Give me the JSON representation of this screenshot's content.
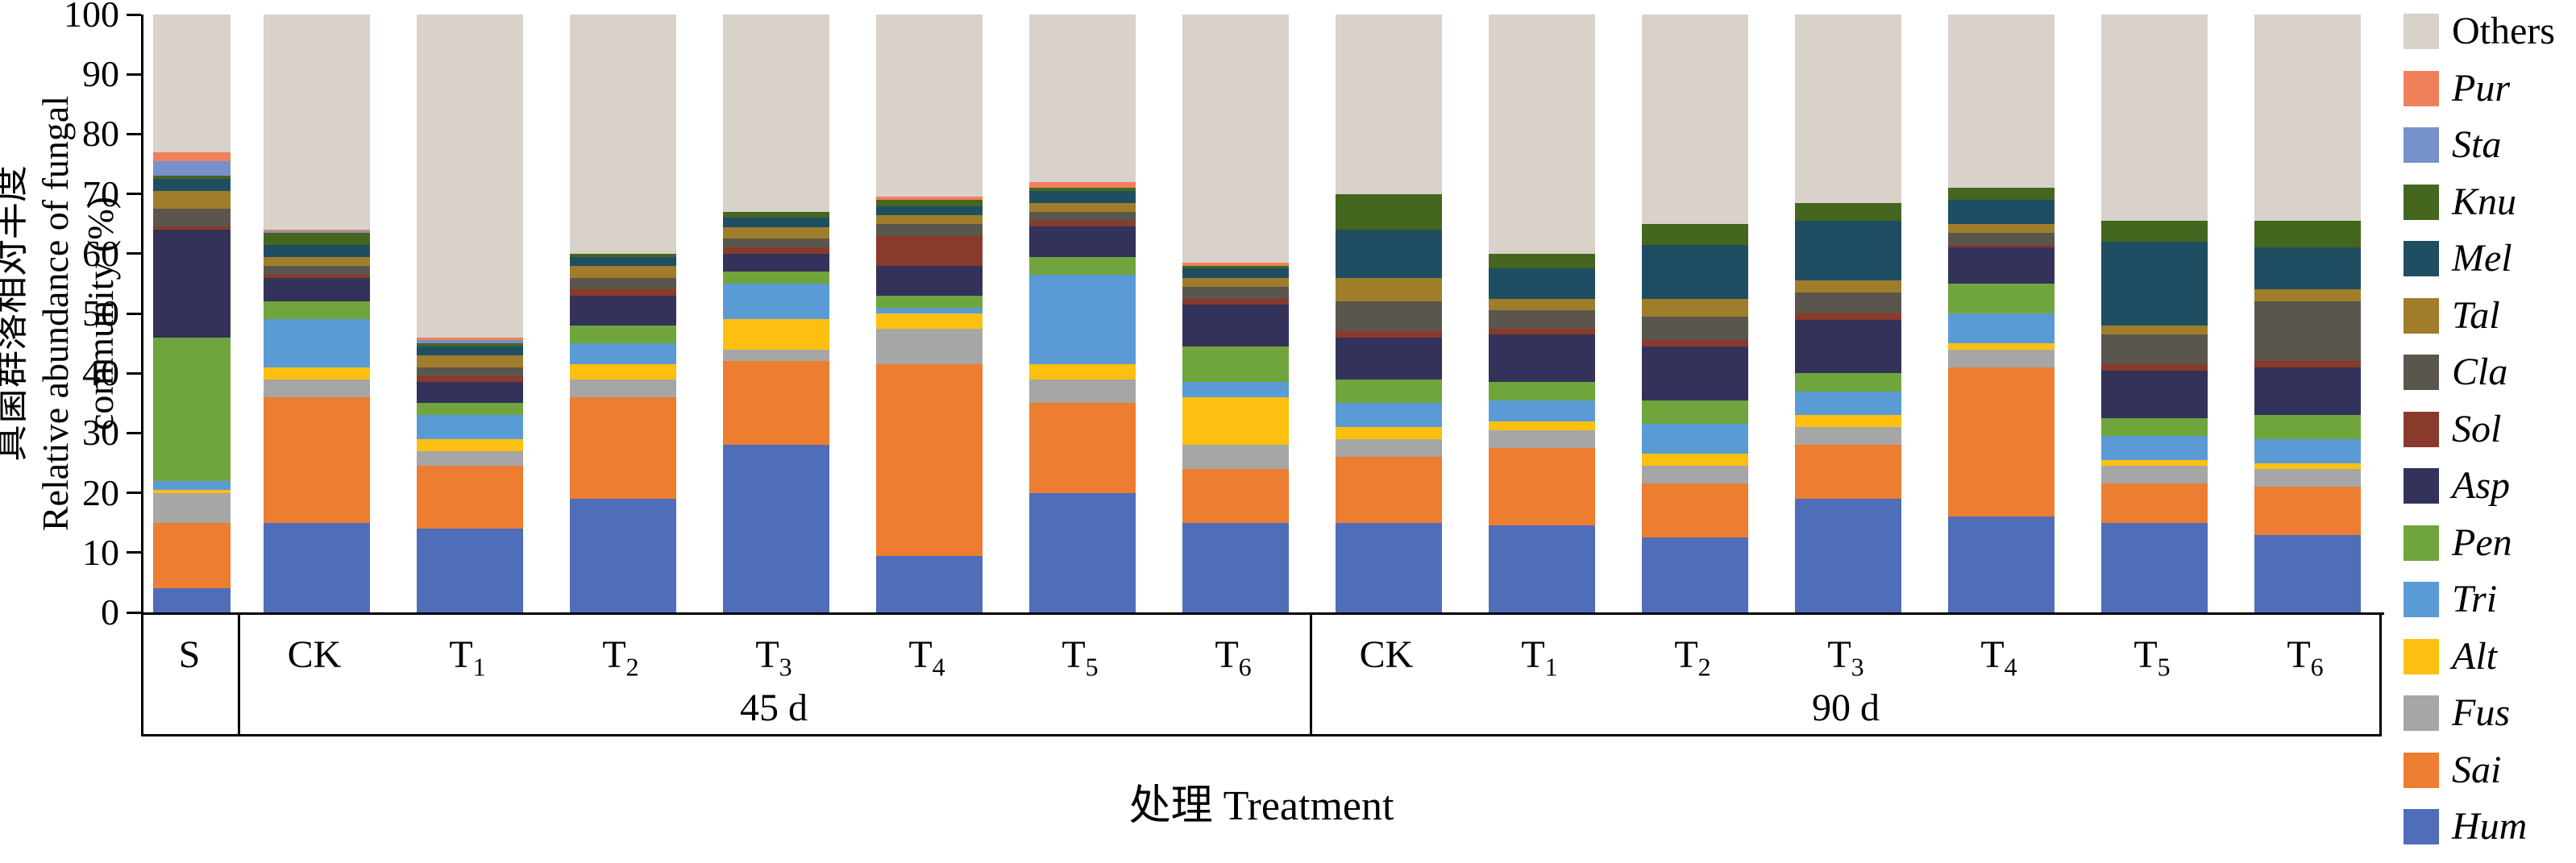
{
  "figure": {
    "ylabel_lines": [
      "真菌群落相对丰度",
      "Relative abundance of fungal",
      "community (%)"
    ],
    "xlabel": "处理 Treatment"
  },
  "chart_data": {
    "type": "bar",
    "stacked": true,
    "orientation": "vertical",
    "title": "",
    "xlabel": "处理 Treatment",
    "ylabel": "真菌群落相对丰度 Relative abundance of fungal community (%)",
    "ylim": [
      0,
      100
    ],
    "yticks": [
      0,
      10,
      20,
      30,
      40,
      50,
      60,
      70,
      80,
      90,
      100
    ],
    "grid": false,
    "legend_position": "right",
    "categories": [
      "S",
      "CK",
      "T1",
      "T2",
      "T3",
      "T4",
      "T5",
      "T6",
      "CK",
      "T1",
      "T2",
      "T3",
      "T4",
      "T5",
      "T6"
    ],
    "group_labels": [
      {
        "label": "45 d",
        "start": 1,
        "end": 7
      },
      {
        "label": "90 d",
        "start": 8,
        "end": 14
      }
    ],
    "legend_order_top_to_bottom": [
      "Others",
      "Pur",
      "Sta",
      "Knu",
      "Mel",
      "Tal",
      "Cla",
      "Sol",
      "Asp",
      "Pen",
      "Tri",
      "Alt",
      "Fus",
      "Sai",
      "Hum"
    ],
    "series": [
      {
        "name": "Hum",
        "color": "#4f6db9",
        "italic": true,
        "values": [
          4,
          15,
          14,
          19,
          28,
          9.5,
          20,
          15,
          15,
          14.5,
          12.5,
          19,
          16,
          15,
          13
        ]
      },
      {
        "name": "Sai",
        "color": "#ed7d31",
        "italic": true,
        "values": [
          11,
          21,
          10.5,
          17,
          14,
          32,
          15,
          9,
          11,
          13,
          9,
          9,
          25,
          6.5,
          8
        ]
      },
      {
        "name": "Fus",
        "color": "#a6a6a6",
        "italic": true,
        "values": [
          5,
          3,
          2.5,
          3,
          2,
          6,
          4,
          4,
          3,
          3,
          3,
          3,
          3,
          3,
          3
        ]
      },
      {
        "name": "Alt",
        "color": "#fdc010",
        "italic": true,
        "values": [
          0.5,
          2,
          2,
          2.5,
          5,
          2.5,
          2.5,
          8,
          2,
          1.5,
          2,
          2,
          1,
          1,
          1
        ]
      },
      {
        "name": "Tri",
        "color": "#5b9bd5",
        "italic": true,
        "values": [
          1.5,
          8,
          4,
          3.5,
          6,
          1,
          15,
          2.5,
          4,
          3.5,
          5,
          4,
          5,
          4,
          4
        ]
      },
      {
        "name": "Pen",
        "color": "#6fa53c",
        "italic": true,
        "values": [
          24,
          3,
          2,
          3,
          2,
          2,
          3,
          6,
          4,
          3,
          4,
          3,
          5,
          3,
          4
        ]
      },
      {
        "name": "Asp",
        "color": "#32325a",
        "italic": true,
        "values": [
          18,
          4,
          3.5,
          5,
          3,
          5,
          5,
          7,
          7,
          8,
          9,
          9,
          6,
          8,
          8
        ]
      },
      {
        "name": "Sol",
        "color": "#8a3a2a",
        "italic": true,
        "values": [
          0.5,
          0.5,
          1,
          1,
          1,
          5,
          1,
          1,
          1,
          1,
          1,
          1,
          0.5,
          1,
          1
        ]
      },
      {
        "name": "Cla",
        "color": "#5a564e",
        "italic": true,
        "values": [
          3,
          1.5,
          1.5,
          2,
          1.5,
          2,
          1.5,
          2,
          5,
          3,
          4,
          3.5,
          2,
          5,
          10
        ]
      },
      {
        "name": "Tal",
        "color": "#a07d2a",
        "italic": true,
        "values": [
          3,
          1.5,
          2,
          2,
          2,
          1.5,
          1.5,
          1.5,
          4,
          2,
          3,
          2,
          1.5,
          1.5,
          2
        ]
      },
      {
        "name": "Mel",
        "color": "#1f4e63",
        "italic": true,
        "values": [
          2,
          2,
          1.5,
          1.5,
          1.5,
          1.5,
          2,
          1.5,
          8,
          5,
          9,
          10,
          4,
          14,
          7
        ]
      },
      {
        "name": "Knu",
        "color": "#44661f",
        "italic": true,
        "values": [
          0.5,
          2,
          0.5,
          0.5,
          1,
          1,
          0.5,
          0.5,
          6,
          2.5,
          3.5,
          3,
          2,
          3.5,
          4.5
        ]
      },
      {
        "name": "Sta",
        "color": "#7691cb",
        "italic": true,
        "values": [
          2.5,
          0.3,
          0.5,
          0,
          0,
          0,
          0,
          0,
          0,
          0,
          0,
          0,
          0,
          0,
          0
        ]
      },
      {
        "name": "Pur",
        "color": "#f0805c",
        "italic": true,
        "values": [
          1.5,
          0.2,
          0.5,
          0,
          0,
          0.5,
          1,
          0.5,
          0,
          0,
          0,
          0,
          0,
          0,
          0
        ]
      },
      {
        "name": "Others",
        "color": "#d8d2ca",
        "italic": false,
        "values": [
          23,
          36,
          54,
          40,
          33,
          30.5,
          28,
          41.5,
          30,
          40,
          35,
          31.5,
          29,
          34.5,
          34.5
        ]
      }
    ]
  }
}
